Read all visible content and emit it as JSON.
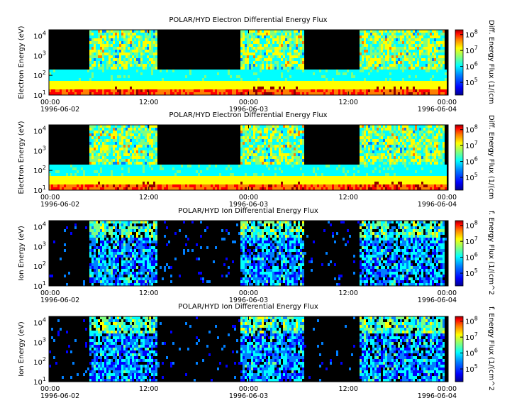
{
  "chart_data": [
    {
      "type": "heatmap",
      "title": "POLAR/HYD  Electron Differential Energy Flux",
      "ylabel": "Electron Energy (eV)",
      "colorbar_label": "Diff. Energy Flux (1/(cm",
      "x_ticks": [
        {
          "time": "00:00",
          "date": "1996-06-02"
        },
        {
          "time": "12:00",
          "date": ""
        },
        {
          "time": "00:00",
          "date": "1996-06-03"
        },
        {
          "time": "12:00",
          "date": ""
        },
        {
          "time": "00:00",
          "date": "1996-06-04"
        }
      ],
      "xlim": [
        "1996-06-02T00:00",
        "1996-06-04T00:00"
      ],
      "yscale": "log",
      "ylim": [
        10,
        20000
      ],
      "y_ticks": [
        "10",
        "10",
        "10",
        "10"
      ],
      "y_tick_exponents": [
        "1",
        "2",
        "3",
        "4"
      ],
      "colorbar_scale": "log",
      "colorbar_ticks": [
        "10",
        "10",
        "10",
        "10"
      ],
      "colorbar_tick_exponents": [
        "5",
        "6",
        "7",
        "8"
      ],
      "species": "electron"
    },
    {
      "type": "heatmap",
      "title": "POLAR/HYD  Electron Differential Energy Flux",
      "ylabel": "Electron Energy (eV)",
      "colorbar_label": "Diff. Energy Flux (1/(cm",
      "x_ticks": [
        {
          "time": "00:00",
          "date": "1996-06-02"
        },
        {
          "time": "12:00",
          "date": ""
        },
        {
          "time": "00:00",
          "date": "1996-06-03"
        },
        {
          "time": "12:00",
          "date": ""
        },
        {
          "time": "00:00",
          "date": "1996-06-04"
        }
      ],
      "xlim": [
        "1996-06-02T00:00",
        "1996-06-04T00:00"
      ],
      "yscale": "log",
      "ylim": [
        10,
        20000
      ],
      "y_ticks": [
        "10",
        "10",
        "10",
        "10"
      ],
      "y_tick_exponents": [
        "1",
        "2",
        "3",
        "4"
      ],
      "colorbar_scale": "log",
      "colorbar_ticks": [
        "10",
        "10",
        "10",
        "10"
      ],
      "colorbar_tick_exponents": [
        "5",
        "6",
        "7",
        "8"
      ],
      "species": "electron"
    },
    {
      "type": "heatmap",
      "title": "POLAR/HYD  Ion Differential Energy Flux",
      "ylabel": "Ion Energy (eV)",
      "colorbar_label": "f. Energy Flux (1/(cm^2",
      "x_ticks": [
        {
          "time": "00:00",
          "date": "1996-06-02"
        },
        {
          "time": "12:00",
          "date": ""
        },
        {
          "time": "00:00",
          "date": "1996-06-03"
        },
        {
          "time": "12:00",
          "date": ""
        },
        {
          "time": "00:00",
          "date": "1996-06-04"
        }
      ],
      "xlim": [
        "1996-06-02T00:00",
        "1996-06-04T00:00"
      ],
      "yscale": "log",
      "ylim": [
        10,
        20000
      ],
      "y_ticks": [
        "10",
        "10",
        "10",
        "10"
      ],
      "y_tick_exponents": [
        "1",
        "2",
        "3",
        "4"
      ],
      "colorbar_scale": "log",
      "colorbar_ticks": [
        "10",
        "10",
        "10",
        "10"
      ],
      "colorbar_tick_exponents": [
        "5",
        "6",
        "7",
        "8"
      ],
      "species": "ion"
    },
    {
      "type": "heatmap",
      "title": "POLAR/HYD  Ion Differential Energy Flux",
      "ylabel": "Ion Energy (eV)",
      "colorbar_label": "f. Energy Flux (1/(cm^2",
      "x_ticks": [
        {
          "time": "00:00",
          "date": "1996-06-02"
        },
        {
          "time": "12:00",
          "date": ""
        },
        {
          "time": "00:00",
          "date": "1996-06-03"
        },
        {
          "time": "12:00",
          "date": ""
        },
        {
          "time": "00:00",
          "date": "1996-06-04"
        }
      ],
      "xlim": [
        "1996-06-02T00:00",
        "1996-06-04T00:00"
      ],
      "yscale": "log",
      "ylim": [
        10,
        20000
      ],
      "y_ticks": [
        "10",
        "10",
        "10",
        "10"
      ],
      "y_tick_exponents": [
        "1",
        "2",
        "3",
        "4"
      ],
      "colorbar_scale": "log",
      "colorbar_ticks": [
        "10",
        "10",
        "10",
        "10"
      ],
      "colorbar_tick_exponents": [
        "5",
        "6",
        "7",
        "8"
      ],
      "species": "ion"
    }
  ],
  "colors": {
    "background": "#000000",
    "colormap": [
      "#00008f",
      "#0000ff",
      "#007fff",
      "#00ffff",
      "#7fff7f",
      "#ffff00",
      "#ff7f00",
      "#ff0000",
      "#8f0000"
    ]
  }
}
